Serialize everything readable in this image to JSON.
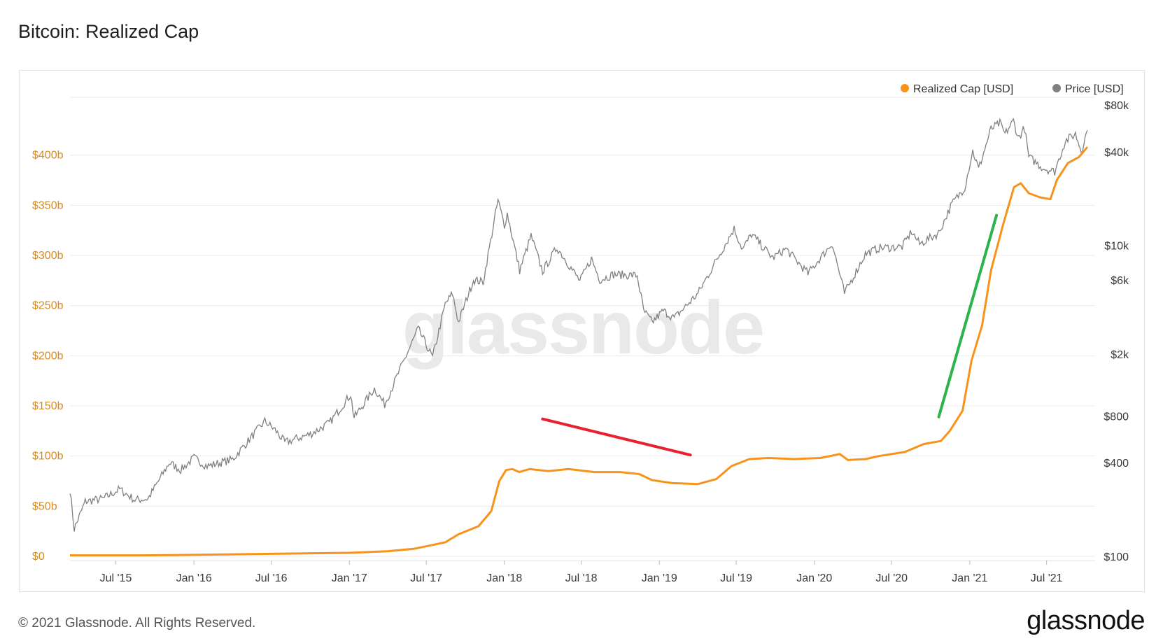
{
  "header": {
    "title": "Bitcoin: Realized Cap"
  },
  "footer": {
    "copyright": "© 2021 Glassnode. All Rights Reserved.",
    "brand": "glassnode"
  },
  "watermark": "glassnode",
  "colors": {
    "realized_cap": "#f7931a",
    "price": "#808080",
    "red_line": "#e8202f",
    "green_line": "#2db34a"
  },
  "chart_data": {
    "type": "line",
    "title": "Bitcoin: Realized Cap",
    "legend_position": "top-right",
    "grid": true,
    "x_range": [
      "2015-03-15",
      "2021-10-15"
    ],
    "x_ticks": [
      {
        "date": "2015-07-01",
        "label": "Jul '15"
      },
      {
        "date": "2016-01-01",
        "label": "Jan '16"
      },
      {
        "date": "2016-07-01",
        "label": "Jul '16"
      },
      {
        "date": "2017-01-01",
        "label": "Jan '17"
      },
      {
        "date": "2017-07-01",
        "label": "Jul '17"
      },
      {
        "date": "2018-01-01",
        "label": "Jan '18"
      },
      {
        "date": "2018-07-01",
        "label": "Jul '18"
      },
      {
        "date": "2019-01-01",
        "label": "Jan '19"
      },
      {
        "date": "2019-07-01",
        "label": "Jul '19"
      },
      {
        "date": "2020-01-01",
        "label": "Jan '20"
      },
      {
        "date": "2020-07-01",
        "label": "Jul '20"
      },
      {
        "date": "2021-01-01",
        "label": "Jan '21"
      },
      {
        "date": "2021-07-01",
        "label": "Jul '21"
      }
    ],
    "y_left": {
      "scale": "linear",
      "range_usd_billions": [
        0,
        450
      ],
      "ticks": [
        {
          "value": 0,
          "label": "$0"
        },
        {
          "value": 50,
          "label": "$50b"
        },
        {
          "value": 100,
          "label": "$100b"
        },
        {
          "value": 150,
          "label": "$150b"
        },
        {
          "value": 200,
          "label": "$200b"
        },
        {
          "value": 250,
          "label": "$250b"
        },
        {
          "value": 300,
          "label": "$300b"
        },
        {
          "value": 350,
          "label": "$350b"
        },
        {
          "value": 400,
          "label": "$400b"
        }
      ]
    },
    "y_right": {
      "scale": "log",
      "range_usd": [
        100,
        80000
      ],
      "ticks": [
        {
          "value": 100,
          "label": "$100"
        },
        {
          "value": 400,
          "label": "$400"
        },
        {
          "value": 800,
          "label": "$800"
        },
        {
          "value": 2000,
          "label": "$2k"
        },
        {
          "value": 6000,
          "label": "$6k"
        },
        {
          "value": 10000,
          "label": "$10k"
        },
        {
          "value": 40000,
          "label": "$40k"
        },
        {
          "value": 80000,
          "label": "$80k"
        }
      ]
    },
    "series": [
      {
        "name": "Realized Cap [USD]",
        "axis": "left",
        "unit": "USD billions",
        "points": [
          [
            "2015-03-15",
            1.0
          ],
          [
            "2015-09-01",
            1.0
          ],
          [
            "2016-01-01",
            1.5
          ],
          [
            "2016-07-01",
            2.5
          ],
          [
            "2017-01-01",
            3.5
          ],
          [
            "2017-04-01",
            5.0
          ],
          [
            "2017-06-01",
            7.5
          ],
          [
            "2017-07-01",
            10
          ],
          [
            "2017-08-15",
            14
          ],
          [
            "2017-09-15",
            22
          ],
          [
            "2017-11-01",
            30
          ],
          [
            "2017-12-01",
            45
          ],
          [
            "2017-12-20",
            75
          ],
          [
            "2018-01-05",
            86
          ],
          [
            "2018-01-20",
            87
          ],
          [
            "2018-02-05",
            84
          ],
          [
            "2018-03-01",
            87
          ],
          [
            "2018-04-15",
            85
          ],
          [
            "2018-06-01",
            87
          ],
          [
            "2018-08-01",
            84
          ],
          [
            "2018-10-01",
            84
          ],
          [
            "2018-11-15",
            82
          ],
          [
            "2018-12-15",
            76
          ],
          [
            "2019-02-01",
            73
          ],
          [
            "2019-04-01",
            72
          ],
          [
            "2019-05-15",
            77
          ],
          [
            "2019-06-20",
            90
          ],
          [
            "2019-08-01",
            97
          ],
          [
            "2019-09-15",
            98
          ],
          [
            "2019-11-15",
            97
          ],
          [
            "2020-01-15",
            98
          ],
          [
            "2020-03-01",
            102
          ],
          [
            "2020-03-20",
            96
          ],
          [
            "2020-05-01",
            97
          ],
          [
            "2020-06-01",
            100
          ],
          [
            "2020-08-01",
            104
          ],
          [
            "2020-09-15",
            112
          ],
          [
            "2020-10-25",
            115
          ],
          [
            "2020-11-15",
            125
          ],
          [
            "2020-12-15",
            145
          ],
          [
            "2021-01-05",
            195
          ],
          [
            "2021-01-30",
            230
          ],
          [
            "2021-02-20",
            285
          ],
          [
            "2021-03-20",
            330
          ],
          [
            "2021-04-15",
            368
          ],
          [
            "2021-05-01",
            372
          ],
          [
            "2021-05-20",
            362
          ],
          [
            "2021-06-15",
            358
          ],
          [
            "2021-07-10",
            356
          ],
          [
            "2021-07-25",
            375
          ],
          [
            "2021-08-20",
            392
          ],
          [
            "2021-09-15",
            398
          ],
          [
            "2021-10-05",
            408
          ]
        ]
      },
      {
        "name": "Price [USD]",
        "axis": "right",
        "unit": "USD",
        "points": [
          [
            "2015-03-15",
            270
          ],
          [
            "2015-03-25",
            150
          ],
          [
            "2015-04-20",
            225
          ],
          [
            "2015-06-01",
            235
          ],
          [
            "2015-07-10",
            270
          ],
          [
            "2015-08-15",
            230
          ],
          [
            "2015-09-15",
            235
          ],
          [
            "2015-11-04",
            400
          ],
          [
            "2015-12-01",
            360
          ],
          [
            "2016-01-01",
            430
          ],
          [
            "2016-02-01",
            380
          ],
          [
            "2016-04-01",
            420
          ],
          [
            "2016-06-16",
            740
          ],
          [
            "2016-07-10",
            650
          ],
          [
            "2016-08-02",
            540
          ],
          [
            "2016-10-01",
            610
          ],
          [
            "2016-11-15",
            720
          ],
          [
            "2017-01-04",
            1100
          ],
          [
            "2017-01-12",
            780
          ],
          [
            "2017-03-01",
            1200
          ],
          [
            "2017-03-25",
            950
          ],
          [
            "2017-05-20",
            2100
          ],
          [
            "2017-06-12",
            2900
          ],
          [
            "2017-07-16",
            1900
          ],
          [
            "2017-08-15",
            4200
          ],
          [
            "2017-09-01",
            4900
          ],
          [
            "2017-09-15",
            3200
          ],
          [
            "2017-10-20",
            6000
          ],
          [
            "2017-11-12",
            5800
          ],
          [
            "2017-12-17",
            19500
          ],
          [
            "2018-01-01",
            13500
          ],
          [
            "2018-01-08",
            16000
          ],
          [
            "2018-02-06",
            6900
          ],
          [
            "2018-03-05",
            11500
          ],
          [
            "2018-04-01",
            6800
          ],
          [
            "2018-05-05",
            9700
          ],
          [
            "2018-06-28",
            5900
          ],
          [
            "2018-07-25",
            8200
          ],
          [
            "2018-08-14",
            6000
          ],
          [
            "2018-09-15",
            6500
          ],
          [
            "2018-11-10",
            6400
          ],
          [
            "2018-11-25",
            3800
          ],
          [
            "2018-12-15",
            3200
          ],
          [
            "2019-01-10",
            3800
          ],
          [
            "2019-02-05",
            3400
          ],
          [
            "2019-04-02",
            4900
          ],
          [
            "2019-05-15",
            8000
          ],
          [
            "2019-06-26",
            12800
          ],
          [
            "2019-07-16",
            9400
          ],
          [
            "2019-08-06",
            11800
          ],
          [
            "2019-09-25",
            8300
          ],
          [
            "2019-10-26",
            9500
          ],
          [
            "2019-12-17",
            6600
          ],
          [
            "2020-02-12",
            10300
          ],
          [
            "2020-03-12",
            4900
          ],
          [
            "2020-04-30",
            8800
          ],
          [
            "2020-06-01",
            9600
          ],
          [
            "2020-07-26",
            9800
          ],
          [
            "2020-08-17",
            12300
          ],
          [
            "2020-09-05",
            10200
          ],
          [
            "2020-10-20",
            12000
          ],
          [
            "2020-11-20",
            18500
          ],
          [
            "2020-12-20",
            23500
          ],
          [
            "2021-01-08",
            40500
          ],
          [
            "2021-01-22",
            31000
          ],
          [
            "2021-02-20",
            56000
          ],
          [
            "2021-03-13",
            61000
          ],
          [
            "2021-03-25",
            52000
          ],
          [
            "2021-04-14",
            63500
          ],
          [
            "2021-04-25",
            49000
          ],
          [
            "2021-05-10",
            57000
          ],
          [
            "2021-05-20",
            37000
          ],
          [
            "2021-06-22",
            31500
          ],
          [
            "2021-07-20",
            29800
          ],
          [
            "2021-08-14",
            47000
          ],
          [
            "2021-09-07",
            52000
          ],
          [
            "2021-09-21",
            40500
          ],
          [
            "2021-10-05",
            55000
          ]
        ]
      }
    ],
    "annotations": [
      {
        "type": "trend-line",
        "color": "red",
        "from": [
          "2018-04-01",
          137
        ],
        "to": [
          "2019-03-15",
          101
        ]
      },
      {
        "type": "trend-line",
        "color": "green",
        "from": [
          "2020-10-20",
          139
        ],
        "to": [
          "2021-03-05",
          340
        ]
      }
    ]
  }
}
